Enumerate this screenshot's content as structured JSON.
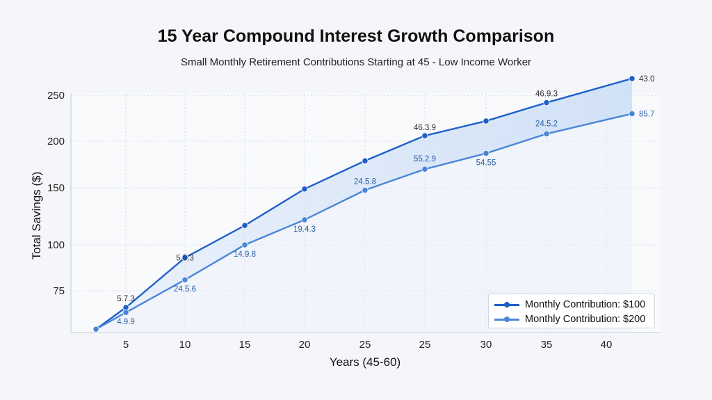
{
  "chart_data": {
    "type": "line",
    "title": "15 Year Compound Interest Growth Comparison",
    "subtitle": "Small Monthly Retirement Contributions Starting at 45 - Low Income Worker",
    "xlabel": "Years (45-60)",
    "ylabel": "Total Savings ($)",
    "categories": [
      "",
      "5",
      "10",
      "15",
      "20",
      "25",
      "25",
      "30",
      "35",
      "40"
    ],
    "y_ticks": [
      "250",
      "200",
      "150",
      "100",
      "75"
    ],
    "ylim": [
      50,
      250
    ],
    "grid": true,
    "legend_position": "bottom-right",
    "series": [
      {
        "name": "Monthly Contribution: $100",
        "color": "#1f5fc9",
        "values": [
          52,
          65,
          93,
          117,
          149,
          179,
          206,
          222,
          242,
          268
        ],
        "labels": [
          "",
          "5.7.3",
          "5.5.3",
          "",
          "",
          "",
          "46.3.9",
          "",
          "46.9.3",
          "43.0"
        ]
      },
      {
        "name": "Monthly Contribution: $200",
        "color": "#4a86d8",
        "values": [
          52,
          62,
          81,
          100,
          122,
          148,
          170,
          187,
          208,
          230
        ],
        "labels": [
          "",
          "4.9.9",
          "24.5.6",
          "14.9.8",
          "19.4.3",
          "24.5.8",
          "55.2.9",
          "54.55",
          "24.5.2",
          "85.7"
        ]
      }
    ]
  }
}
